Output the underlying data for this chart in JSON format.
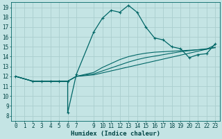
{
  "xlabel": "Humidex (Indice chaleur)",
  "background_color": "#c4e4e4",
  "grid_color": "#aacece",
  "line_color": "#006666",
  "xlim": [
    -0.5,
    23.5
  ],
  "ylim": [
    7.5,
    19.5
  ],
  "xticks": [
    0,
    1,
    2,
    3,
    4,
    5,
    6,
    7,
    9,
    10,
    11,
    12,
    13,
    14,
    15,
    16,
    17,
    18,
    19,
    20,
    21,
    22,
    23
  ],
  "yticks": [
    8,
    9,
    10,
    11,
    12,
    13,
    14,
    15,
    16,
    17,
    18,
    19
  ],
  "main_line": {
    "x": [
      0,
      2,
      3,
      4,
      5,
      6,
      6,
      7,
      9,
      10,
      11,
      12,
      13,
      14,
      15,
      16,
      17,
      18,
      19,
      20,
      21,
      22,
      23
    ],
    "y": [
      12,
      11.5,
      11.5,
      11.5,
      11.5,
      11.5,
      8.3,
      12.2,
      16.5,
      17.9,
      18.7,
      18.5,
      19.2,
      18.5,
      17.0,
      15.9,
      15.7,
      15.0,
      14.8,
      13.9,
      14.2,
      14.3,
      15.3
    ]
  },
  "flat_lines": [
    {
      "x": [
        0,
        2,
        3,
        4,
        5,
        6,
        7,
        9,
        10,
        11,
        12,
        13,
        14,
        15,
        16,
        17,
        18,
        19,
        20,
        21,
        22,
        23
      ],
      "y": [
        12,
        11.5,
        11.5,
        11.5,
        11.5,
        11.5,
        12.0,
        12.15,
        12.35,
        12.55,
        12.75,
        12.95,
        13.15,
        13.35,
        13.55,
        13.75,
        13.95,
        14.15,
        14.35,
        14.55,
        14.75,
        14.95
      ]
    },
    {
      "x": [
        0,
        2,
        3,
        4,
        5,
        6,
        7,
        9,
        10,
        11,
        12,
        13,
        14,
        15,
        16,
        17,
        18,
        19,
        20,
        21,
        22,
        23
      ],
      "y": [
        12,
        11.5,
        11.5,
        11.5,
        11.5,
        11.5,
        12.0,
        12.25,
        12.55,
        12.85,
        13.15,
        13.45,
        13.7,
        13.9,
        14.05,
        14.2,
        14.35,
        14.5,
        14.6,
        14.7,
        14.8,
        14.9
      ]
    },
    {
      "x": [
        0,
        2,
        3,
        4,
        5,
        6,
        7,
        9,
        10,
        11,
        12,
        13,
        14,
        15,
        16,
        17,
        18,
        19,
        20,
        21,
        22,
        23
      ],
      "y": [
        12,
        11.5,
        11.5,
        11.5,
        11.5,
        11.5,
        12.0,
        12.4,
        12.9,
        13.3,
        13.7,
        14.0,
        14.2,
        14.35,
        14.45,
        14.5,
        14.55,
        14.6,
        14.65,
        14.7,
        14.75,
        15.2
      ]
    }
  ]
}
